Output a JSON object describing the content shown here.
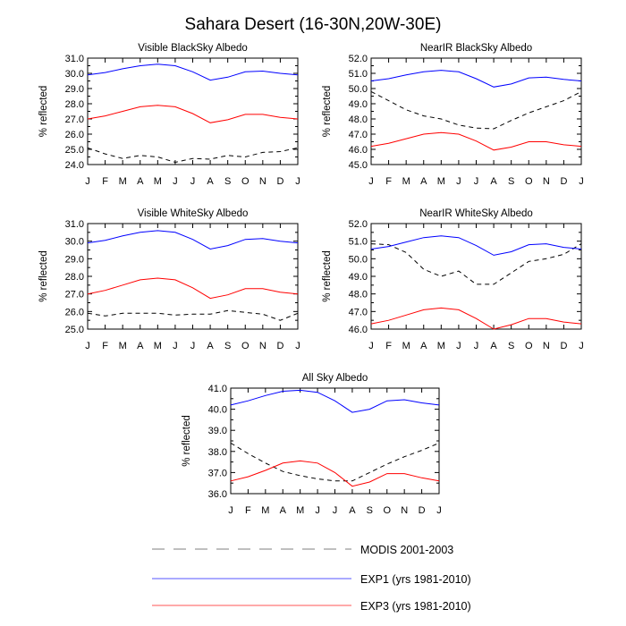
{
  "title": "Sahara Desert (16-30N,20W-30E)",
  "colors": {
    "modis": "#000000",
    "exp1": "#0000ff",
    "exp3": "#ff0000",
    "legend_dash": "#999999",
    "legend_exp1": "#5555ff",
    "legend_exp3": "#ff5555"
  },
  "legend": [
    {
      "key": "modis",
      "label": "MODIS 2001-2003"
    },
    {
      "key": "exp1",
      "label": "EXP1 (yrs 1981-2010)"
    },
    {
      "key": "exp3",
      "label": "EXP3 (yrs 1981-2010)"
    }
  ],
  "chart_data": [
    {
      "type": "line",
      "title": "Visible BlackSky Albedo",
      "ylabel": "% reflected",
      "xlabel": "",
      "categories": [
        "J",
        "F",
        "M",
        "A",
        "M",
        "J",
        "J",
        "A",
        "S",
        "O",
        "N",
        "D",
        "J"
      ],
      "ylim": [
        24.0,
        31.0
      ],
      "yticks": [
        "24.0",
        "25.0",
        "26.0",
        "27.0",
        "28.0",
        "29.0",
        "30.0",
        "31.0"
      ],
      "series": [
        {
          "name": "MODIS 2001-2003",
          "key": "modis",
          "dashed": true,
          "values": [
            25.1,
            24.7,
            24.4,
            24.6,
            24.5,
            24.15,
            24.4,
            24.35,
            24.6,
            24.5,
            24.8,
            24.85,
            25.1
          ]
        },
        {
          "name": "EXP1 (yrs 1981-2010)",
          "key": "exp1",
          "dashed": false,
          "values": [
            29.9,
            30.05,
            30.3,
            30.5,
            30.6,
            30.5,
            30.1,
            29.55,
            29.75,
            30.1,
            30.15,
            30.0,
            29.9
          ]
        },
        {
          "name": "EXP3 (yrs 1981-2010)",
          "key": "exp3",
          "dashed": false,
          "values": [
            27.0,
            27.2,
            27.5,
            27.8,
            27.9,
            27.8,
            27.35,
            26.75,
            26.95,
            27.3,
            27.3,
            27.1,
            27.0
          ]
        }
      ]
    },
    {
      "type": "line",
      "title": "NearIR BlackSky Albedo",
      "ylabel": "% reflected",
      "xlabel": "",
      "categories": [
        "J",
        "F",
        "M",
        "A",
        "M",
        "J",
        "J",
        "A",
        "S",
        "O",
        "N",
        "D",
        "J"
      ],
      "ylim": [
        45.0,
        52.0
      ],
      "yticks": [
        "45.0",
        "46.0",
        "47.0",
        "48.0",
        "49.0",
        "50.0",
        "51.0",
        "52.0"
      ],
      "series": [
        {
          "name": "MODIS 2001-2003",
          "key": "modis",
          "dashed": true,
          "values": [
            49.8,
            49.2,
            48.6,
            48.2,
            48.0,
            47.6,
            47.4,
            47.35,
            47.9,
            48.4,
            48.8,
            49.2,
            49.8
          ]
        },
        {
          "name": "EXP1 (yrs 1981-2010)",
          "key": "exp1",
          "dashed": false,
          "values": [
            50.5,
            50.65,
            50.9,
            51.1,
            51.2,
            51.1,
            50.65,
            50.1,
            50.3,
            50.7,
            50.75,
            50.6,
            50.5
          ]
        },
        {
          "name": "EXP3 (yrs 1981-2010)",
          "key": "exp3",
          "dashed": false,
          "values": [
            46.2,
            46.4,
            46.7,
            47.0,
            47.1,
            47.0,
            46.55,
            45.95,
            46.15,
            46.5,
            46.5,
            46.3,
            46.2
          ]
        }
      ]
    },
    {
      "type": "line",
      "title": "Visible WhiteSky Albedo",
      "ylabel": "% reflected",
      "xlabel": "",
      "categories": [
        "J",
        "F",
        "M",
        "A",
        "M",
        "J",
        "J",
        "A",
        "S",
        "O",
        "N",
        "D",
        "J"
      ],
      "ylim": [
        25.0,
        31.0
      ],
      "yticks": [
        "25.0",
        "26.0",
        "27.0",
        "28.0",
        "29.0",
        "30.0",
        "31.0"
      ],
      "series": [
        {
          "name": "MODIS 2001-2003",
          "key": "modis",
          "dashed": true,
          "values": [
            25.9,
            25.75,
            25.9,
            25.9,
            25.9,
            25.8,
            25.85,
            25.85,
            26.05,
            25.95,
            25.85,
            25.5,
            25.9
          ]
        },
        {
          "name": "EXP1 (yrs 1981-2010)",
          "key": "exp1",
          "dashed": false,
          "values": [
            29.9,
            30.05,
            30.3,
            30.5,
            30.6,
            30.5,
            30.1,
            29.55,
            29.75,
            30.1,
            30.15,
            30.0,
            29.9
          ]
        },
        {
          "name": "EXP3 (yrs 1981-2010)",
          "key": "exp3",
          "dashed": false,
          "values": [
            27.0,
            27.2,
            27.5,
            27.8,
            27.9,
            27.8,
            27.35,
            26.75,
            26.95,
            27.3,
            27.3,
            27.1,
            27.0
          ]
        }
      ]
    },
    {
      "type": "line",
      "title": "NearIR WhiteSky Albedo",
      "ylabel": "% reflected",
      "xlabel": "",
      "categories": [
        "J",
        "F",
        "M",
        "A",
        "M",
        "J",
        "J",
        "A",
        "S",
        "O",
        "N",
        "D",
        "J"
      ],
      "ylim": [
        46.0,
        52.0
      ],
      "yticks": [
        "46.0",
        "47.0",
        "48.0",
        "49.0",
        "50.0",
        "51.0",
        "52.0"
      ],
      "series": [
        {
          "name": "MODIS 2001-2003",
          "key": "modis",
          "dashed": true,
          "values": [
            50.85,
            50.8,
            50.35,
            49.4,
            49.0,
            49.3,
            48.55,
            48.55,
            49.2,
            49.85,
            50.0,
            50.25,
            50.85
          ]
        },
        {
          "name": "EXP1 (yrs 1981-2010)",
          "key": "exp1",
          "dashed": false,
          "values": [
            50.55,
            50.7,
            50.95,
            51.2,
            51.3,
            51.2,
            50.75,
            50.2,
            50.4,
            50.8,
            50.85,
            50.65,
            50.55
          ]
        },
        {
          "name": "EXP3 (yrs 1981-2010)",
          "key": "exp3",
          "dashed": false,
          "values": [
            46.3,
            46.5,
            46.8,
            47.1,
            47.2,
            47.1,
            46.6,
            46.0,
            46.25,
            46.6,
            46.6,
            46.4,
            46.3
          ]
        }
      ]
    },
    {
      "type": "line",
      "title": "All Sky Albedo",
      "ylabel": "% reflected",
      "xlabel": "",
      "categories": [
        "J",
        "F",
        "M",
        "A",
        "M",
        "J",
        "J",
        "A",
        "S",
        "O",
        "N",
        "D",
        "J"
      ],
      "ylim": [
        36.0,
        41.0
      ],
      "yticks": [
        "36.0",
        "37.0",
        "38.0",
        "39.0",
        "40.0",
        "41.0"
      ],
      "series": [
        {
          "name": "MODIS 2001-2003",
          "key": "modis",
          "dashed": true,
          "values": [
            38.4,
            37.9,
            37.45,
            37.05,
            36.85,
            36.7,
            36.6,
            36.6,
            37.0,
            37.4,
            37.75,
            38.05,
            38.4
          ]
        },
        {
          "name": "EXP1 (yrs 1981-2010)",
          "key": "exp1",
          "dashed": false,
          "values": [
            40.2,
            40.4,
            40.65,
            40.85,
            40.9,
            40.8,
            40.4,
            39.85,
            40.0,
            40.4,
            40.45,
            40.3,
            40.2
          ]
        },
        {
          "name": "EXP3 (yrs 1981-2010)",
          "key": "exp3",
          "dashed": false,
          "values": [
            36.6,
            36.8,
            37.1,
            37.45,
            37.55,
            37.45,
            37.0,
            36.35,
            36.55,
            36.95,
            36.95,
            36.75,
            36.6
          ]
        }
      ]
    }
  ]
}
